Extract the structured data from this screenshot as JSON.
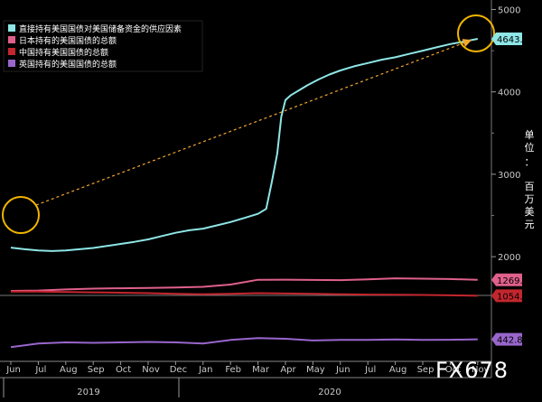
{
  "chart_data": {
    "type": "line",
    "title": "",
    "xlabel": "",
    "ylabel": "",
    "unit_label": [
      "单",
      "位",
      "：",
      "百",
      "万",
      "美",
      "元"
    ],
    "x_tick_labels": [
      "Jun",
      "Jul",
      "Aug",
      "Sep",
      "Oct",
      "Nov",
      "Dec",
      "Jan",
      "Feb",
      "Mar",
      "Apr",
      "May",
      "Jun",
      "Jul",
      "Aug",
      "Sep",
      "Oct",
      "Nov"
    ],
    "year_labels": [
      "2019",
      "2020"
    ],
    "axes": [
      {
        "name": "upper",
        "yticks": [
          2000,
          3000,
          4000,
          5000
        ],
        "ylim": [
          1530,
          5060
        ]
      },
      {
        "name": "middle",
        "yticks": [],
        "ylim": [
          900,
          1450
        ]
      },
      {
        "name": "lower",
        "yticks": [],
        "ylim": [
          370,
          520
        ]
      }
    ],
    "grid": false,
    "legend_position": "top-left",
    "series": [
      {
        "name": "直接持有美国国债对美国储备资金的供应因素",
        "color": "#8ee6e6",
        "axis": "upper",
        "last_value_label": "4643.1",
        "points": [
          [
            0.0,
            2110
          ],
          [
            0.5,
            2090
          ],
          [
            1.0,
            2075
          ],
          [
            1.5,
            2068
          ],
          [
            2.0,
            2075
          ],
          [
            2.5,
            2090
          ],
          [
            3.0,
            2105
          ],
          [
            3.5,
            2130
          ],
          [
            4.0,
            2155
          ],
          [
            4.5,
            2180
          ],
          [
            5.0,
            2210
          ],
          [
            5.5,
            2250
          ],
          [
            6.0,
            2290
          ],
          [
            6.5,
            2320
          ],
          [
            7.0,
            2340
          ],
          [
            7.5,
            2380
          ],
          [
            8.0,
            2420
          ],
          [
            8.5,
            2470
          ],
          [
            9.0,
            2520
          ],
          [
            9.3,
            2580
          ],
          [
            9.5,
            2900
          ],
          [
            9.7,
            3250
          ],
          [
            9.85,
            3700
          ],
          [
            10.0,
            3900
          ],
          [
            10.2,
            3960
          ],
          [
            10.5,
            4020
          ],
          [
            10.8,
            4080
          ],
          [
            11.2,
            4150
          ],
          [
            11.6,
            4210
          ],
          [
            12.0,
            4260
          ],
          [
            12.5,
            4310
          ],
          [
            13.0,
            4350
          ],
          [
            13.5,
            4390
          ],
          [
            14.0,
            4420
          ],
          [
            14.5,
            4460
          ],
          [
            15.0,
            4500
          ],
          [
            15.5,
            4540
          ],
          [
            16.0,
            4580
          ],
          [
            16.5,
            4610
          ],
          [
            17.0,
            4643.1
          ]
        ]
      },
      {
        "name": "日本持有的美国国债的总额",
        "color": "#e0608c",
        "axis": "middle",
        "last_value_label": "1269.5",
        "points": [
          [
            0.0,
            1120
          ],
          [
            1.0,
            1125
          ],
          [
            2.0,
            1140
          ],
          [
            3.0,
            1150
          ],
          [
            4.0,
            1155
          ],
          [
            5.0,
            1160
          ],
          [
            6.0,
            1165
          ],
          [
            7.0,
            1175
          ],
          [
            8.0,
            1205
          ],
          [
            9.0,
            1270
          ],
          [
            10.0,
            1272
          ],
          [
            11.0,
            1268
          ],
          [
            12.0,
            1265
          ],
          [
            13.0,
            1275
          ],
          [
            14.0,
            1290
          ],
          [
            15.0,
            1285
          ],
          [
            16.0,
            1280
          ],
          [
            17.0,
            1269.5
          ]
        ]
      },
      {
        "name": "中国持有美国国债的总额",
        "color": "#c4262e",
        "axis": "middle",
        "last_value_label": "1054.0",
        "points": [
          [
            0.0,
            1110
          ],
          [
            1.0,
            1110
          ],
          [
            2.0,
            1105
          ],
          [
            3.0,
            1100
          ],
          [
            4.0,
            1095
          ],
          [
            5.0,
            1090
          ],
          [
            6.0,
            1080
          ],
          [
            7.0,
            1075
          ],
          [
            8.0,
            1080
          ],
          [
            9.0,
            1090
          ],
          [
            10.0,
            1085
          ],
          [
            11.0,
            1080
          ],
          [
            12.0,
            1075
          ],
          [
            13.0,
            1070
          ],
          [
            14.0,
            1068
          ],
          [
            15.0,
            1065
          ],
          [
            16.0,
            1060
          ],
          [
            17.0,
            1054.0
          ]
        ]
      },
      {
        "name": "英国持有的美国国债的总额",
        "color": "#9966cc",
        "axis": "lower",
        "last_value_label": "442.8",
        "points": [
          [
            0.0,
            410
          ],
          [
            1.0,
            425
          ],
          [
            2.0,
            430
          ],
          [
            3.0,
            428
          ],
          [
            4.0,
            430
          ],
          [
            5.0,
            432
          ],
          [
            6.0,
            430
          ],
          [
            7.0,
            425
          ],
          [
            8.0,
            440
          ],
          [
            9.0,
            448
          ],
          [
            10.0,
            445
          ],
          [
            11.0,
            438
          ],
          [
            12.0,
            440
          ],
          [
            13.0,
            440
          ],
          [
            14.0,
            442
          ],
          [
            15.0,
            440
          ],
          [
            16.0,
            441
          ],
          [
            17.0,
            442.8
          ]
        ]
      }
    ],
    "annotations": {
      "circles": [
        "start",
        "end"
      ],
      "arrow_color": "#f0a830",
      "circle_color": "#f0b400"
    },
    "watermark": "FX678"
  }
}
